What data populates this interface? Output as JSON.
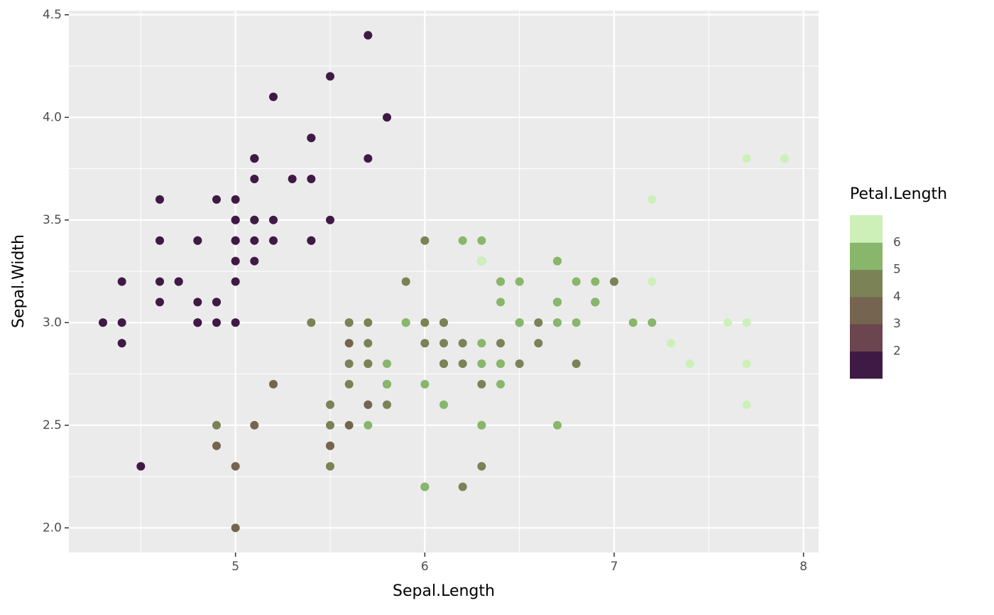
{
  "chart_data": {
    "type": "scatter",
    "x_label": "Sepal.Length",
    "y_label": "Sepal.Width",
    "legend_title": "Petal.Length",
    "xlim": [
      4.12,
      8.08
    ],
    "ylim": [
      1.88,
      4.52
    ],
    "xticks": [
      5,
      6,
      7,
      8
    ],
    "yticks": [
      {
        "value": 2.0,
        "label": "2.0"
      },
      2.5,
      {
        "value": 3.0,
        "label": "3.0"
      },
      3.5,
      {
        "value": 4.0,
        "label": "4.0"
      },
      4.5
    ],
    "grid": true,
    "color_breaks": [
      2,
      3,
      4,
      5,
      6
    ],
    "colors": [
      "#3f1a44",
      "#6b4550",
      "#75644f",
      "#7a8256",
      "#88b66a",
      "#cdf0b8"
    ],
    "x": [
      5.1,
      4.9,
      4.7,
      4.6,
      5.0,
      5.4,
      4.6,
      5.0,
      4.4,
      4.9,
      5.4,
      4.8,
      4.8,
      4.3,
      5.8,
      5.7,
      5.4,
      5.1,
      5.7,
      5.1,
      5.4,
      5.1,
      4.6,
      5.1,
      4.8,
      5.0,
      5.0,
      5.2,
      5.2,
      4.7,
      4.8,
      5.4,
      5.2,
      5.5,
      4.9,
      5.0,
      5.5,
      4.9,
      4.4,
      5.1,
      5.0,
      4.5,
      4.4,
      5.0,
      5.1,
      4.8,
      5.1,
      4.6,
      5.3,
      5.0,
      7.0,
      6.4,
      6.9,
      5.5,
      6.5,
      5.7,
      6.3,
      4.9,
      6.6,
      5.2,
      5.0,
      5.9,
      6.0,
      6.1,
      5.6,
      6.7,
      5.6,
      5.8,
      6.2,
      5.6,
      5.9,
      6.1,
      6.3,
      6.1,
      6.4,
      6.6,
      6.8,
      6.7,
      6.0,
      5.7,
      5.5,
      5.5,
      5.8,
      6.0,
      5.4,
      6.0,
      6.7,
      6.3,
      5.6,
      5.5,
      5.5,
      6.1,
      5.8,
      5.0,
      5.6,
      5.7,
      5.7,
      6.2,
      5.1,
      5.7,
      6.3,
      5.8,
      7.1,
      6.3,
      6.5,
      7.6,
      4.9,
      7.3,
      6.7,
      7.2,
      6.5,
      6.4,
      6.8,
      5.7,
      5.8,
      6.4,
      6.5,
      7.7,
      7.7,
      6.0,
      6.9,
      5.6,
      7.7,
      6.3,
      6.7,
      7.2,
      6.2,
      6.1,
      6.4,
      7.2,
      7.4,
      7.9,
      6.4,
      6.3,
      6.1,
      7.7,
      6.3,
      6.4,
      6.0,
      6.9,
      6.7,
      6.9,
      5.8,
      6.8,
      6.7,
      6.7,
      6.3,
      6.5,
      6.2,
      5.9
    ],
    "y": [
      3.5,
      3.0,
      3.2,
      3.1,
      3.6,
      3.9,
      3.4,
      3.4,
      2.9,
      3.1,
      3.7,
      3.4,
      3.0,
      3.0,
      4.0,
      4.4,
      3.9,
      3.5,
      3.8,
      3.8,
      3.4,
      3.7,
      3.6,
      3.3,
      3.4,
      3.0,
      3.4,
      3.5,
      3.4,
      3.2,
      3.1,
      3.4,
      4.1,
      4.2,
      3.1,
      3.2,
      3.5,
      3.6,
      3.0,
      3.4,
      3.5,
      2.3,
      3.2,
      3.5,
      3.8,
      3.0,
      3.8,
      3.2,
      3.7,
      3.3,
      3.2,
      3.2,
      3.1,
      2.3,
      2.8,
      2.8,
      3.3,
      2.4,
      2.9,
      2.7,
      2.0,
      3.0,
      2.2,
      2.9,
      2.9,
      3.1,
      3.0,
      2.7,
      2.2,
      2.5,
      3.2,
      2.8,
      2.5,
      2.8,
      2.9,
      3.0,
      2.8,
      3.0,
      2.9,
      2.6,
      2.4,
      2.4,
      2.7,
      2.7,
      3.0,
      3.4,
      3.1,
      2.3,
      3.0,
      2.5,
      2.6,
      3.0,
      2.6,
      2.3,
      2.7,
      3.0,
      2.9,
      2.9,
      2.5,
      2.8,
      3.3,
      2.7,
      3.0,
      2.9,
      3.0,
      3.0,
      2.5,
      2.9,
      2.5,
      3.6,
      3.2,
      2.7,
      3.0,
      2.5,
      2.8,
      3.2,
      3.0,
      3.8,
      2.6,
      2.2,
      3.2,
      2.8,
      2.8,
      2.7,
      3.3,
      3.2,
      2.8,
      3.0,
      2.8,
      3.0,
      2.8,
      3.8,
      2.8,
      2.8,
      2.6,
      3.0,
      3.4,
      3.1,
      3.0,
      3.1,
      3.1,
      3.1,
      2.7,
      3.2,
      3.3,
      3.0,
      2.5,
      3.0,
      3.4,
      3.0
    ],
    "color_values": [
      1.4,
      1.4,
      1.3,
      1.5,
      1.4,
      1.7,
      1.4,
      1.5,
      1.4,
      1.5,
      1.5,
      1.6,
      1.4,
      1.1,
      1.2,
      1.5,
      1.3,
      1.4,
      1.7,
      1.5,
      1.7,
      1.5,
      1.0,
      1.7,
      1.9,
      1.6,
      1.6,
      1.5,
      1.4,
      1.6,
      1.6,
      1.5,
      1.5,
      1.4,
      1.5,
      1.2,
      1.3,
      1.4,
      1.3,
      1.5,
      1.3,
      1.3,
      1.3,
      1.6,
      1.9,
      1.4,
      1.6,
      1.4,
      1.5,
      1.4,
      4.7,
      4.5,
      4.9,
      4.0,
      4.6,
      4.5,
      4.7,
      3.3,
      4.6,
      3.9,
      3.5,
      4.2,
      4.0,
      4.7,
      3.6,
      4.4,
      4.5,
      4.1,
      4.5,
      3.9,
      4.8,
      4.0,
      4.9,
      4.7,
      4.3,
      4.4,
      4.8,
      5.0,
      4.5,
      3.5,
      3.8,
      3.7,
      3.9,
      5.1,
      4.5,
      4.5,
      4.7,
      4.4,
      4.1,
      4.0,
      4.4,
      4.6,
      4.0,
      3.3,
      4.2,
      4.2,
      4.2,
      4.3,
      3.0,
      4.1,
      6.0,
      5.1,
      5.9,
      5.6,
      5.8,
      6.6,
      4.5,
      6.3,
      5.8,
      6.1,
      5.1,
      5.3,
      5.5,
      5.0,
      5.1,
      5.3,
      5.5,
      6.7,
      6.9,
      5.0,
      5.7,
      4.9,
      6.7,
      4.9,
      5.7,
      6.0,
      4.8,
      4.9,
      5.6,
      5.8,
      6.1,
      6.4,
      5.6,
      5.1,
      5.6,
      6.1,
      5.6,
      5.5,
      4.8,
      5.4,
      5.6,
      5.1,
      5.1,
      5.9,
      5.7,
      5.2,
      5.0,
      5.2,
      5.4,
      5.1
    ]
  }
}
